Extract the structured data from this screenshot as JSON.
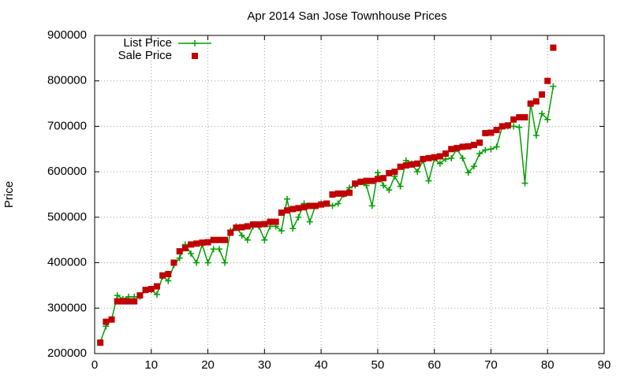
{
  "chart_data": {
    "type": "line",
    "title": "Apr 2014 San Jose Townhouse Prices",
    "y_label": "Price",
    "x": [
      1,
      2,
      3,
      4,
      5,
      6,
      7,
      8,
      9,
      10,
      11,
      12,
      13,
      14,
      15,
      16,
      17,
      18,
      19,
      20,
      21,
      22,
      23,
      24,
      25,
      26,
      27,
      28,
      29,
      30,
      31,
      32,
      33,
      34,
      35,
      36,
      37,
      38,
      39,
      40,
      41,
      42,
      43,
      44,
      45,
      46,
      47,
      48,
      49,
      50,
      51,
      52,
      53,
      54,
      55,
      56,
      57,
      58,
      59,
      60,
      61,
      62,
      63,
      64,
      65,
      66,
      67,
      68,
      69,
      70,
      71,
      72,
      73,
      74,
      75,
      76,
      77,
      78,
      79,
      80,
      81
    ],
    "series": [
      {
        "name": "List Price",
        "color": "#00a000",
        "style": "linespoints",
        "values": [
          225000,
          260000,
          275000,
          328000,
          320000,
          325000,
          325000,
          325000,
          340000,
          340000,
          330000,
          370000,
          360000,
          395000,
          410000,
          440000,
          420000,
          400000,
          440000,
          400000,
          430000,
          430000,
          400000,
          470000,
          480000,
          460000,
          450000,
          480000,
          480000,
          450000,
          480000,
          480000,
          470000,
          540000,
          475000,
          500000,
          530000,
          490000,
          525000,
          530000,
          530000,
          525000,
          530000,
          550000,
          565000,
          570000,
          578000,
          570000,
          525000,
          598000,
          570000,
          560000,
          590000,
          568000,
          625000,
          618000,
          600000,
          625000,
          580000,
          628000,
          618000,
          628000,
          630000,
          650000,
          630000,
          598000,
          612000,
          640000,
          648000,
          650000,
          655000,
          700000,
          700000,
          700000,
          698000,
          575000,
          750000,
          680000,
          728000,
          715000,
          788000
        ]
      },
      {
        "name": "Sale Price",
        "color": "#c00000",
        "style": "points",
        "values": [
          224000,
          270000,
          275000,
          315000,
          315000,
          315000,
          315000,
          328000,
          340000,
          342000,
          348000,
          372000,
          375000,
          400000,
          425000,
          432000,
          440000,
          442000,
          444000,
          445000,
          450000,
          450000,
          450000,
          466000,
          477000,
          478000,
          480000,
          484000,
          484000,
          485000,
          490000,
          490000,
          510000,
          515000,
          518000,
          520000,
          522000,
          525000,
          525000,
          528000,
          530000,
          550000,
          552000,
          552000,
          554000,
          574000,
          578000,
          580000,
          580000,
          584000,
          586000,
          597000,
          600000,
          611000,
          614000,
          616000,
          618000,
          628000,
          630000,
          632000,
          634000,
          640000,
          650000,
          652000,
          655000,
          656000,
          659000,
          664000,
          685000,
          686000,
          692000,
          700000,
          702000,
          715000,
          720000,
          720000,
          750000,
          755000,
          770000,
          800000,
          873000
        ]
      }
    ],
    "xlim": [
      0,
      90
    ],
    "xticks": [
      0,
      10,
      20,
      30,
      40,
      50,
      60,
      70,
      80,
      90
    ],
    "ylim": [
      200000,
      900000
    ],
    "yticks": [
      200000,
      300000,
      400000,
      500000,
      600000,
      700000,
      800000,
      900000
    ],
    "grid": true,
    "legend": "top-left"
  }
}
